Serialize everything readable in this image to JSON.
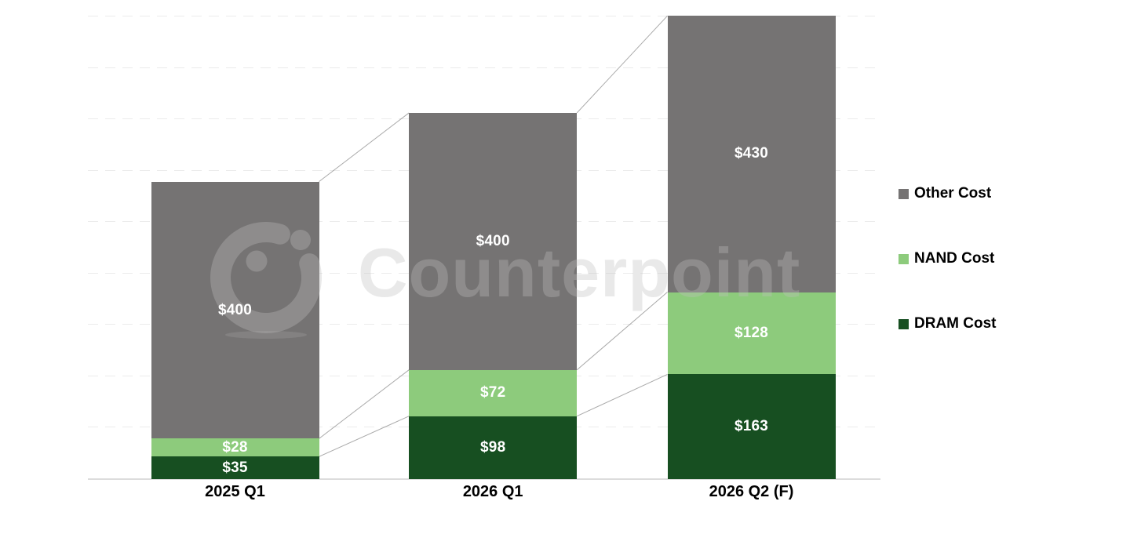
{
  "chart_data": {
    "type": "bar",
    "stacked": true,
    "title": "",
    "xlabel": "",
    "ylabel": "",
    "categories": [
      "2025 Q1",
      "2026 Q1",
      "2026 Q2 (F)"
    ],
    "series": [
      {
        "name": "DRAM Cost",
        "color": "#174F21",
        "values": [
          35,
          98,
          163
        ]
      },
      {
        "name": "NAND Cost",
        "color": "#8DCB7C",
        "values": [
          28,
          72,
          128
        ]
      },
      {
        "name": "Other Cost",
        "color": "#757373",
        "values": [
          400,
          400,
          430
        ]
      }
    ],
    "data_labels": {
      "prefix": "$",
      "color": "#FFFFFF"
    },
    "legend": {
      "position": "right",
      "items": [
        "Other Cost",
        "NAND Cost",
        "DRAM Cost"
      ]
    },
    "ylim": [
      0,
      730
    ],
    "gridlines": {
      "visible": true,
      "interval": 80,
      "style": "dashed"
    },
    "connector_lines": true
  },
  "watermark": {
    "text": "Counterpoint"
  }
}
